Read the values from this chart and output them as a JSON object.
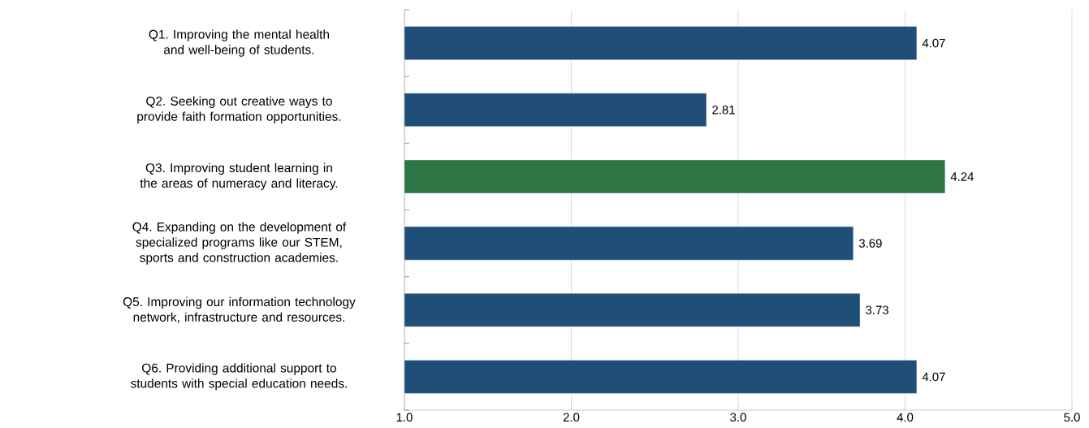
{
  "chart_data": {
    "type": "bar",
    "orientation": "horizontal",
    "categories": [
      "Q1. Improving the mental health and well-being of students.",
      "Q2. Seeking out creative ways to provide faith formation opportunities.",
      "Q3. Improving student learning in the areas of numeracy and literacy.",
      "Q4. Expanding on the development of specialized programs like our STEM, sports and construction academies.",
      "Q5. Improving our information technology network, infrastructure and resources.",
      "Q6. Providing additional support to students with special education needs."
    ],
    "values": [
      4.07,
      2.81,
      4.24,
      3.69,
      3.73,
      4.07
    ],
    "colors": [
      "#1f4e79",
      "#1f4e79",
      "#2e7545",
      "#1f4e79",
      "#1f4e79",
      "#1f4e79"
    ],
    "xlim": [
      1,
      5
    ],
    "xticks": [
      {
        "value": 1,
        "label": "1.0"
      },
      {
        "value": 2,
        "label": "2.0"
      },
      {
        "value": 3,
        "label": "3.0"
      },
      {
        "value": 4,
        "label": "4.0"
      },
      {
        "value": 5,
        "label": "5.0"
      }
    ],
    "grid": "x",
    "data_labels": true
  }
}
